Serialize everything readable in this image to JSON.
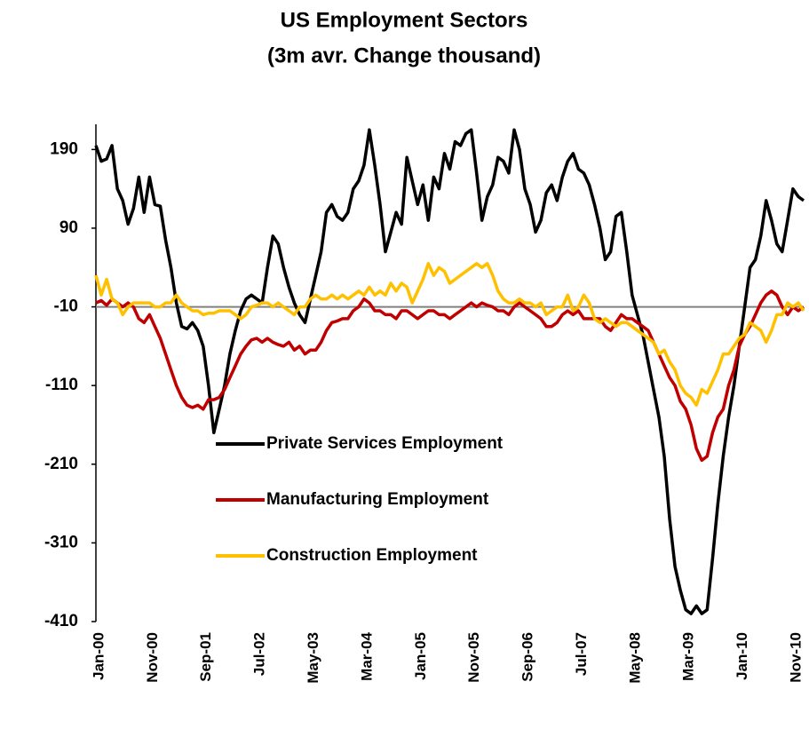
{
  "chart_data": {
    "type": "line",
    "title": [
      "US Employment Sectors",
      "(3m avr. Change thousand)"
    ],
    "categories": [
      "Jan-00",
      null,
      null,
      null,
      null,
      null,
      null,
      null,
      null,
      null,
      "Nov-00",
      null,
      null,
      null,
      null,
      null,
      null,
      null,
      null,
      null,
      "Sep-01",
      null,
      null,
      null,
      null,
      null,
      null,
      null,
      null,
      null,
      "Jul-02",
      null,
      null,
      null,
      null,
      null,
      null,
      null,
      null,
      null,
      "May-03",
      null,
      null,
      null,
      null,
      null,
      null,
      null,
      null,
      null,
      "Mar-04",
      null,
      null,
      null,
      null,
      null,
      null,
      null,
      null,
      null,
      "Jan-05",
      null,
      null,
      null,
      null,
      null,
      null,
      null,
      null,
      null,
      "Nov-05",
      null,
      null,
      null,
      null,
      null,
      null,
      null,
      null,
      null,
      "Sep-06",
      null,
      null,
      null,
      null,
      null,
      null,
      null,
      null,
      null,
      "Jul-07",
      null,
      null,
      null,
      null,
      null,
      null,
      null,
      null,
      null,
      "May-08",
      null,
      null,
      null,
      null,
      null,
      null,
      null,
      null,
      null,
      "Mar-09",
      null,
      null,
      null,
      null,
      null,
      null,
      null,
      null,
      null,
      "Jan-10",
      null,
      null,
      null,
      null,
      null,
      null,
      null,
      null,
      null,
      "Nov-10",
      null,
      null
    ],
    "series": [
      {
        "name": "Private Services Employment",
        "color": "#000000",
        "values": [
          195,
          175,
          178,
          195,
          140,
          125,
          95,
          115,
          155,
          110,
          155,
          120,
          118,
          75,
          40,
          -5,
          -35,
          -38,
          -30,
          -40,
          -60,
          -110,
          -170,
          -140,
          -110,
          -70,
          -40,
          -15,
          0,
          5,
          0,
          -5,
          40,
          80,
          70,
          40,
          15,
          -5,
          -20,
          -30,
          0,
          30,
          60,
          110,
          120,
          105,
          100,
          110,
          140,
          150,
          170,
          215,
          170,
          120,
          60,
          85,
          110,
          95,
          180,
          150,
          120,
          145,
          100,
          155,
          140,
          185,
          165,
          200,
          195,
          210,
          215,
          160,
          100,
          130,
          145,
          180,
          175,
          160,
          215,
          190,
          140,
          120,
          85,
          100,
          135,
          145,
          125,
          155,
          175,
          185,
          165,
          160,
          145,
          120,
          90,
          50,
          60,
          105,
          110,
          60,
          5,
          -20,
          -45,
          -80,
          -115,
          -150,
          -200,
          -280,
          -340,
          -370,
          -395,
          -400,
          -390,
          -400,
          -395,
          -330,
          -260,
          -200,
          -150,
          -110,
          -60,
          -10,
          40,
          50,
          80,
          125,
          100,
          70,
          60,
          100,
          140,
          130,
          125
        ]
      },
      {
        "name": "Manufacturing Employment",
        "color": "#c00000",
        "values": [
          -5,
          -2,
          -8,
          0,
          -5,
          -10,
          -5,
          -10,
          -25,
          -30,
          -20,
          -35,
          -50,
          -70,
          -90,
          -110,
          -125,
          -135,
          -138,
          -135,
          -140,
          -128,
          -128,
          -125,
          -115,
          -100,
          -85,
          -70,
          -60,
          -52,
          -50,
          -55,
          -50,
          -55,
          -58,
          -60,
          -55,
          -65,
          -60,
          -70,
          -65,
          -65,
          -55,
          -40,
          -30,
          -28,
          -25,
          -25,
          -15,
          -10,
          0,
          -5,
          -15,
          -15,
          -20,
          -20,
          -25,
          -15,
          -15,
          -20,
          -25,
          -20,
          -15,
          -15,
          -20,
          -20,
          -25,
          -20,
          -15,
          -10,
          -5,
          -10,
          -5,
          -8,
          -10,
          -15,
          -15,
          -20,
          -10,
          -5,
          -10,
          -15,
          -20,
          -25,
          -35,
          -35,
          -30,
          -20,
          -15,
          -20,
          -15,
          -25,
          -25,
          -25,
          -25,
          -35,
          -40,
          -30,
          -20,
          -25,
          -25,
          -30,
          -35,
          -40,
          -55,
          -70,
          -85,
          -100,
          -110,
          -130,
          -140,
          -160,
          -190,
          -205,
          -200,
          -170,
          -150,
          -140,
          -110,
          -90,
          -60,
          -45,
          -35,
          -20,
          -5,
          5,
          10,
          5,
          -10,
          -20,
          -10,
          -15,
          -10
        ]
      },
      {
        "name": "Construction Employment",
        "color": "#ffc000",
        "values": [
          30,
          5,
          25,
          0,
          -5,
          -20,
          -10,
          -5,
          -5,
          -5,
          -5,
          -10,
          -10,
          -5,
          -5,
          5,
          -5,
          -10,
          -15,
          -15,
          -20,
          -18,
          -18,
          -15,
          -15,
          -15,
          -20,
          -25,
          -20,
          -10,
          -8,
          -5,
          -5,
          -10,
          -5,
          -10,
          -15,
          -20,
          -10,
          -10,
          0,
          5,
          0,
          0,
          5,
          0,
          5,
          0,
          5,
          10,
          5,
          15,
          5,
          10,
          5,
          20,
          10,
          20,
          15,
          -5,
          10,
          25,
          45,
          30,
          40,
          35,
          20,
          25,
          30,
          35,
          40,
          45,
          40,
          45,
          30,
          10,
          0,
          -5,
          -5,
          0,
          -5,
          -5,
          -10,
          -5,
          -20,
          -15,
          -10,
          -10,
          5,
          -15,
          -10,
          5,
          -5,
          -25,
          -30,
          -25,
          -30,
          -35,
          -30,
          -30,
          -35,
          -40,
          -45,
          -50,
          -55,
          -70,
          -65,
          -80,
          -90,
          -110,
          -120,
          -125,
          -135,
          -115,
          -120,
          -105,
          -90,
          -70,
          -70,
          -60,
          -50,
          -45,
          -30,
          -35,
          -40,
          -55,
          -40,
          -20,
          -20,
          -5,
          -10,
          -5,
          -15
        ]
      }
    ],
    "ylim": [
      -410,
      222
    ],
    "yticks": [
      190,
      90,
      -10,
      -110,
      -210,
      -310,
      -410
    ],
    "x_axis_at": -10,
    "legend": "center"
  }
}
